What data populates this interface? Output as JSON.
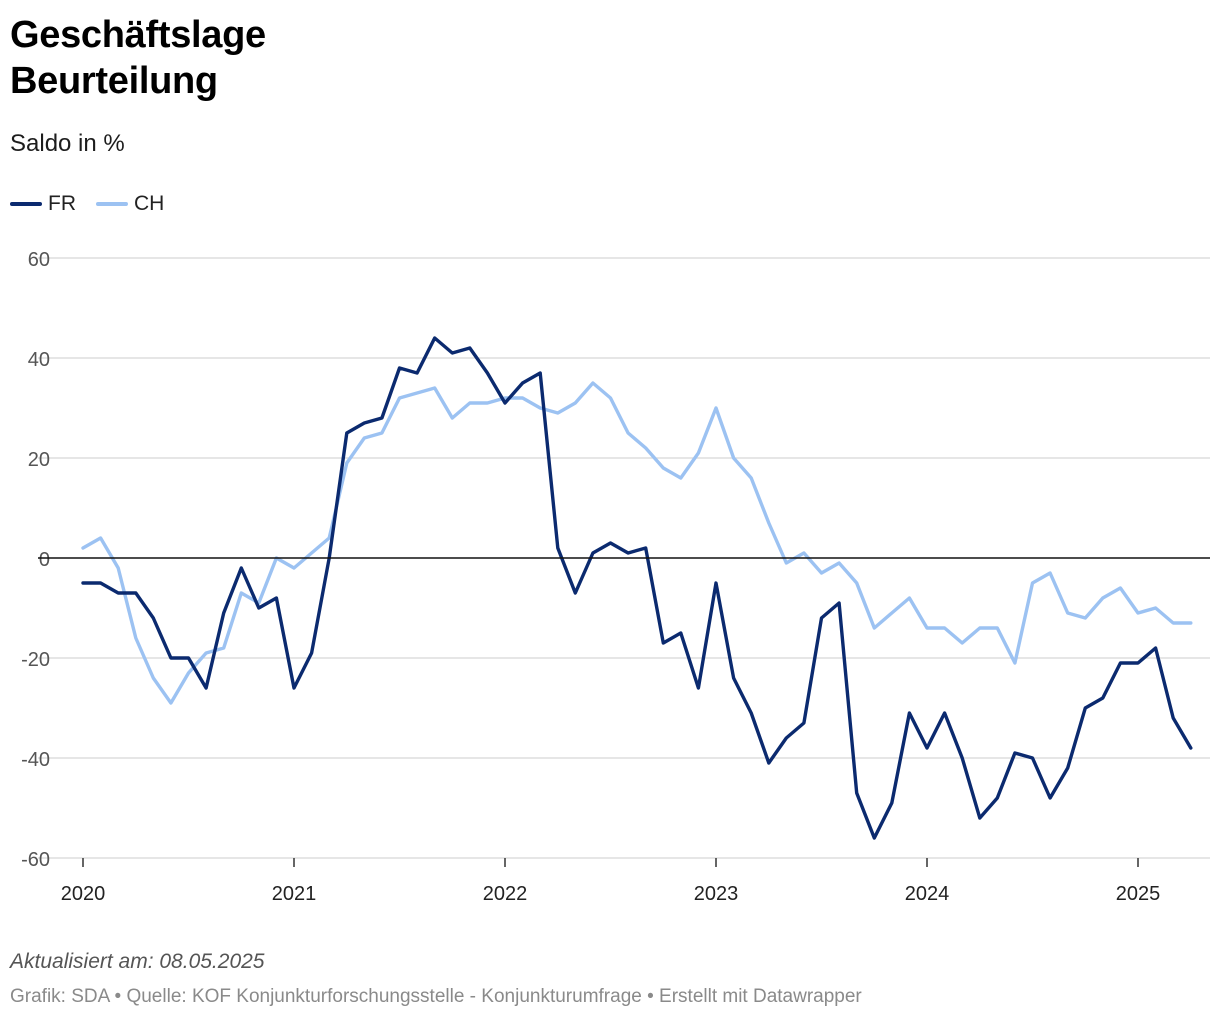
{
  "header": {
    "title_line1": "Geschäftslage",
    "title_line2": "Beurteilung",
    "subtitle": "Saldo in %"
  },
  "footer": {
    "updated": "Aktualisiert am: 08.05.2025",
    "source": "Grafik: SDA • Quelle: KOF Konjunkturforschungsstelle - Konjunkturumfrage • Erstellt mit Datawrapper"
  },
  "chart_data": {
    "type": "line",
    "title": "Geschäftslage Beurteilung",
    "subtitle": "Saldo in %",
    "xlabel": "",
    "ylabel": "",
    "x_start": "2020-01",
    "x_interval": "month",
    "xlim": [
      2020.0,
      2025.35
    ],
    "ylim": [
      -60,
      60
    ],
    "y_ticks": [
      "60",
      "40",
      "20",
      "0",
      "-20",
      "-40",
      "-60"
    ],
    "y_tick_values": [
      60,
      40,
      20,
      0,
      -20,
      -40,
      -60
    ],
    "x_ticks": [
      "2020",
      "2021",
      "2022",
      "2023",
      "2024",
      "2025"
    ],
    "x_tick_values": [
      2020,
      2021,
      2022,
      2023,
      2024,
      2025
    ],
    "grid": true,
    "zero_line": true,
    "legend_position": "top-left",
    "series": [
      {
        "name": "FR",
        "color": "#0b2a6f",
        "values": [
          -5,
          -5,
          -7,
          -7,
          -12,
          -20,
          -20,
          -26,
          -11,
          -2,
          -10,
          -8,
          -26,
          -19,
          0,
          25,
          27,
          28,
          38,
          37,
          44,
          41,
          42,
          37,
          31,
          35,
          37,
          2,
          -7,
          1,
          3,
          1,
          2,
          -17,
          -15,
          -26,
          -5,
          -24,
          -31,
          -41,
          -36,
          -33,
          -12,
          -9,
          -47,
          -56,
          -49,
          -31,
          -38,
          -31,
          -40,
          -52,
          -48,
          -39,
          -40,
          -48,
          -42,
          -30,
          -28,
          -21,
          -21,
          -18,
          -32,
          -38
        ]
      },
      {
        "name": "CH",
        "color": "#9cc2f2",
        "values": [
          2,
          4,
          -2,
          -16,
          -24,
          -29,
          -23,
          -19,
          -18,
          -7,
          -9,
          0,
          -2,
          1,
          4,
          19,
          24,
          25,
          32,
          33,
          34,
          28,
          31,
          31,
          32,
          32,
          30,
          29,
          31,
          35,
          32,
          25,
          22,
          18,
          16,
          21,
          30,
          20,
          16,
          7,
          -1,
          1,
          -3,
          -1,
          -5,
          -14,
          -11,
          -8,
          -14,
          -14,
          -17,
          -14,
          -14,
          -21,
          -5,
          -3,
          -11,
          -12,
          -8,
          -6,
          -11,
          -10,
          -13,
          -13
        ]
      }
    ]
  }
}
